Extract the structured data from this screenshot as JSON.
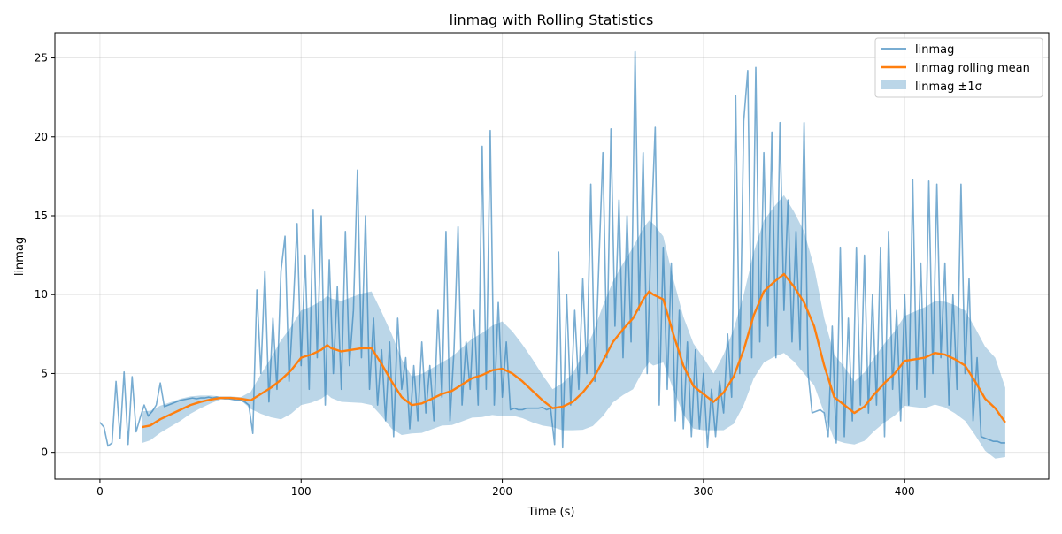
{
  "chart_data": {
    "type": "line",
    "title": "linmag with Rolling Statistics",
    "xlabel": "Time (s)",
    "ylabel": "linmag",
    "xlim": [
      -22.4,
      471.6
    ],
    "ylim": [
      -1.7,
      26.6
    ],
    "xticks": [
      0,
      100,
      200,
      300,
      400
    ],
    "yticks": [
      0,
      5,
      10,
      15,
      20,
      25
    ],
    "grid": true,
    "legend_position": "top-right",
    "legend": [
      "linmag",
      "linmag rolling mean",
      "linmag ±1σ"
    ],
    "colors": {
      "raw": "#1f77b4",
      "mean": "#ff7f0e",
      "band": "#1f77b4"
    },
    "series": [
      {
        "name": "linmag",
        "x_start": 0,
        "x_step": 2,
        "values": [
          1.9,
          1.6,
          0.4,
          0.6,
          4.5,
          0.9,
          5.1,
          0.5,
          4.8,
          1.3,
          2.2,
          3.0,
          2.3,
          2.6,
          3.0,
          4.4,
          2.9,
          3.0,
          3.1,
          3.2,
          3.3,
          3.35,
          3.4,
          3.45,
          3.4,
          3.45,
          3.45,
          3.5,
          3.45,
          3.5,
          3.45,
          3.4,
          3.4,
          3.35,
          3.3,
          3.3,
          3.2,
          3.0,
          1.2,
          10.3,
          5.0,
          11.5,
          3.2,
          8.5,
          4.0,
          11.5,
          13.7,
          4.5,
          9.0,
          14.5,
          5.5,
          12.5,
          4.0,
          15.4,
          6.0,
          15.0,
          3.0,
          12.2,
          5.0,
          10.5,
          4.0,
          14.0,
          5.5,
          9.0,
          17.9,
          6.0,
          15.0,
          4.0,
          8.5,
          3.0,
          6.5,
          2.0,
          7.0,
          1.0,
          8.5,
          4.0,
          6.0,
          1.5,
          5.5,
          2.0,
          7.0,
          2.5,
          5.5,
          2.0,
          9.0,
          3.5,
          14.0,
          2.0,
          6.5,
          14.3,
          3.0,
          7.0,
          4.0,
          9.0,
          3.0,
          19.4,
          4.0,
          20.4,
          3.0,
          9.5,
          3.5,
          7.0,
          2.7,
          2.8,
          2.7,
          2.7,
          2.8,
          2.8,
          2.8,
          2.8,
          2.85,
          2.7,
          2.8,
          0.5,
          12.7,
          0.3,
          10.0,
          3.0,
          9.0,
          4.0,
          11.0,
          5.0,
          17.0,
          4.5,
          12.0,
          19.0,
          6.0,
          20.5,
          8.0,
          16.0,
          6.0,
          15.0,
          7.0,
          25.4,
          9.0,
          19.0,
          5.0,
          14.0,
          20.6,
          3.0,
          13.0,
          4.0,
          12.0,
          2.0,
          9.0,
          1.5,
          7.0,
          1.0,
          6.5,
          1.5,
          5.0,
          0.3,
          4.0,
          1.0,
          4.5,
          2.5,
          7.5,
          3.5,
          22.6,
          5.0,
          21.0,
          24.2,
          6.0,
          24.4,
          7.0,
          19.0,
          8.0,
          20.3,
          6.0,
          20.9,
          9.0,
          16.0,
          7.0,
          14.0,
          6.5,
          20.9,
          5.0,
          2.5,
          2.6,
          2.7,
          2.5,
          1.0,
          8.0,
          0.6,
          13.0,
          1.0,
          8.5,
          2.0,
          13.0,
          3.0,
          12.5,
          2.5,
          10.0,
          3.0,
          13.0,
          1.0,
          14.0,
          4.0,
          9.0,
          2.0,
          10.0,
          3.0,
          17.3,
          4.0,
          12.0,
          3.5,
          17.2,
          5.0,
          17.0,
          6.0,
          12.0,
          3.0,
          10.0,
          4.0,
          17.0,
          5.0,
          11.0,
          2.0,
          6.0,
          1.0,
          0.9,
          0.8,
          0.7,
          0.7,
          0.6,
          0.6
        ]
      },
      {
        "name": "linmag rolling mean",
        "x": [
          21,
          25,
          30,
          35,
          40,
          45,
          50,
          55,
          60,
          65,
          70,
          75,
          80,
          85,
          90,
          95,
          100,
          105,
          110,
          113,
          115,
          120,
          125,
          130,
          135,
          140,
          145,
          150,
          155,
          160,
          165,
          170,
          175,
          180,
          185,
          190,
          195,
          200,
          205,
          210,
          215,
          220,
          225,
          230,
          235,
          240,
          245,
          250,
          255,
          260,
          265,
          270,
          273,
          275,
          280,
          285,
          290,
          295,
          300,
          305,
          310,
          315,
          320,
          325,
          330,
          335,
          340,
          345,
          350,
          355,
          360,
          365,
          370,
          375,
          380,
          385,
          390,
          395,
          400,
          405,
          410,
          415,
          420,
          425,
          430,
          435,
          440,
          445,
          450
        ],
        "values": [
          1.6,
          1.7,
          2.1,
          2.4,
          2.7,
          3.0,
          3.2,
          3.35,
          3.45,
          3.45,
          3.4,
          3.3,
          3.7,
          4.1,
          4.6,
          5.2,
          6.0,
          6.2,
          6.5,
          6.8,
          6.6,
          6.4,
          6.5,
          6.6,
          6.6,
          5.6,
          4.5,
          3.5,
          3.0,
          3.1,
          3.4,
          3.7,
          3.9,
          4.3,
          4.7,
          4.9,
          5.2,
          5.3,
          5.0,
          4.5,
          3.9,
          3.3,
          2.8,
          2.9,
          3.2,
          3.8,
          4.6,
          5.8,
          7.0,
          7.8,
          8.5,
          9.7,
          10.2,
          10.0,
          9.7,
          7.5,
          5.5,
          4.2,
          3.7,
          3.2,
          3.8,
          4.8,
          6.5,
          8.7,
          10.2,
          10.8,
          11.3,
          10.5,
          9.5,
          8.0,
          5.5,
          3.5,
          3.0,
          2.5,
          2.9,
          3.7,
          4.4,
          5.0,
          5.8,
          5.9,
          6.0,
          6.3,
          6.2,
          5.9,
          5.5,
          4.5,
          3.4,
          2.8,
          1.9
        ]
      },
      {
        "name": "linmag ±1σ",
        "std_x": [
          21,
          40,
          60,
          72,
          78,
          90,
          100,
          120,
          135,
          145,
          155,
          170,
          185,
          200,
          215,
          225,
          235,
          250,
          265,
          275,
          285,
          300,
          305,
          315,
          330,
          340,
          350,
          360,
          370,
          375,
          390,
          410,
          430,
          445,
          450
        ],
        "std": [
          1.0,
          0.7,
          0.1,
          0.1,
          1.0,
          2.5,
          3.0,
          3.2,
          3.6,
          3.0,
          1.8,
          2.0,
          2.5,
          3.0,
          2.0,
          1.2,
          1.8,
          3.5,
          4.5,
          4.5,
          3.5,
          2.3,
          1.8,
          3.0,
          4.5,
          5.0,
          4.5,
          3.0,
          2.4,
          2.0,
          2.5,
          3.2,
          3.5,
          3.2,
          2.2
        ]
      }
    ]
  }
}
